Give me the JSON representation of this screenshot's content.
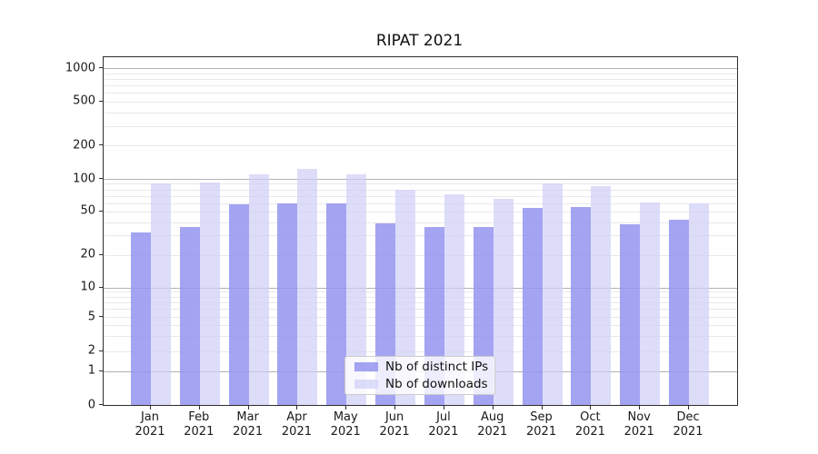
{
  "chart_data": {
    "type": "bar",
    "title": "RIPAT 2021",
    "categories": [
      "Jan 2021",
      "Feb 2021",
      "Mar 2021",
      "Apr 2021",
      "May 2021",
      "Jun 2021",
      "Jul 2021",
      "Aug 2021",
      "Sep 2021",
      "Oct 2021",
      "Nov 2021",
      "Dec 2021"
    ],
    "series": [
      {
        "name": "Nb of distinct IPs",
        "color": "rgba(148,148,240,0.85)",
        "values": [
          32,
          36,
          58,
          60,
          59,
          39,
          36,
          36,
          54,
          55,
          38,
          42
        ]
      },
      {
        "name": "Nb of downloads",
        "color": "rgba(206,206,247,0.70)",
        "values": [
          90,
          93,
          110,
          124,
          110,
          79,
          72,
          66,
          91,
          86,
          61,
          60
        ]
      }
    ],
    "xlabel": "",
    "ylabel": "",
    "y_axis": {
      "scale": "symlog",
      "tick_values": [
        0,
        1,
        2,
        5,
        10,
        20,
        50,
        100,
        200,
        500,
        1000
      ],
      "tick_labels": [
        "0",
        "1",
        "2",
        "5",
        "10",
        "20",
        "50",
        "100",
        "200",
        "500",
        "1000"
      ],
      "range": [
        0,
        1300
      ]
    },
    "grid": {
      "show": true,
      "major_color": "#b2b2b2",
      "minor_color": "#e9e9ed"
    },
    "legend": {
      "position": "lower-center-inside",
      "entries": [
        "Nb of distinct IPs",
        "Nb of downloads"
      ]
    }
  }
}
